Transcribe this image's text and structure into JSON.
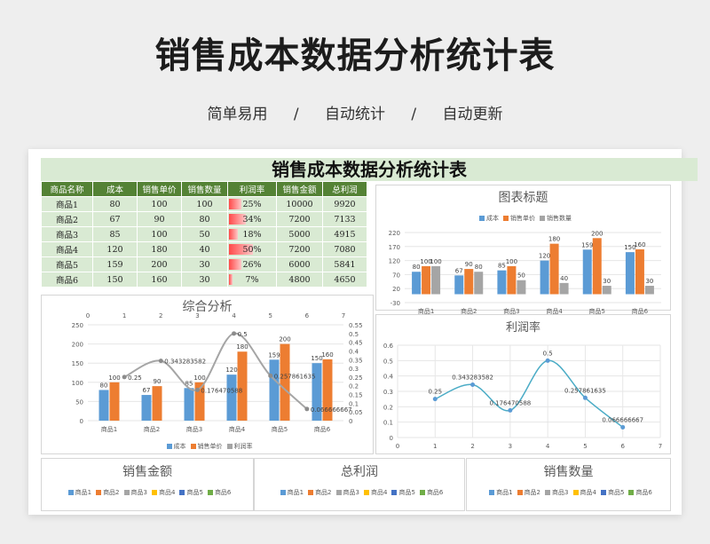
{
  "header": {
    "title": "销售成本数据分析统计表",
    "subtitle": [
      "简单易用",
      "/",
      "自动统计",
      "/",
      "自动更新"
    ]
  },
  "sheet": {
    "title": "销售成本数据分析统计表",
    "columns": [
      "商品名称",
      "成本",
      "销售单价",
      "销售数量",
      "利润率",
      "销售金额",
      "总利润"
    ],
    "rows": [
      {
        "name": "商品1",
        "cost": "80",
        "price": "100",
        "qty": "100",
        "margin": "25%",
        "margin_value": 0.25,
        "sales": "10000",
        "profit": "9920"
      },
      {
        "name": "商品2",
        "cost": "67",
        "price": "90",
        "qty": "80",
        "margin": "34%",
        "margin_value": 0.343283582,
        "sales": "7200",
        "profit": "7133"
      },
      {
        "name": "商品3",
        "cost": "85",
        "price": "100",
        "qty": "50",
        "margin": "18%",
        "margin_value": 0.176470588,
        "sales": "5000",
        "profit": "4915"
      },
      {
        "name": "商品4",
        "cost": "120",
        "price": "180",
        "qty": "40",
        "margin": "50%",
        "margin_value": 0.5,
        "sales": "7200",
        "profit": "7080"
      },
      {
        "name": "商品5",
        "cost": "159",
        "price": "200",
        "qty": "30",
        "margin": "26%",
        "margin_value": 0.257861635,
        "sales": "6000",
        "profit": "5841"
      },
      {
        "name": "商品6",
        "cost": "150",
        "price": "160",
        "qty": "30",
        "margin": "7%",
        "margin_value": 0.066666667,
        "sales": "4800",
        "profit": "4650"
      }
    ]
  },
  "chart_titles": {
    "chart_title": "图表标题",
    "combined": "综合分析",
    "margin": "利润率",
    "sales_amount": "销售金额",
    "total_profit": "总利润",
    "sales_qty": "销售数量"
  },
  "colors": {
    "cost": "#5b9bd5",
    "price": "#ed7d31",
    "qty": "#a5a5a5",
    "p4": "#ffc000",
    "margin_line": "#4bacc6",
    "p6": "#70ad47",
    "header_green": "#548235",
    "light_green": "#d9ead3",
    "margin_bar": "#ff4a4a"
  },
  "chart_data": [
    {
      "type": "bar",
      "title": "图表标题",
      "categories": [
        "商品1",
        "商品2",
        "商品3",
        "商品4",
        "商品5",
        "商品6"
      ],
      "series": [
        {
          "name": "成本",
          "values": [
            80,
            67,
            85,
            120,
            159,
            150
          ]
        },
        {
          "name": "销售单价",
          "values": [
            100,
            90,
            100,
            180,
            200,
            160
          ]
        },
        {
          "name": "销售数量",
          "values": [
            100,
            80,
            50,
            40,
            30,
            30
          ]
        }
      ],
      "yticks": [
        "-30",
        "20",
        "70",
        "120",
        "170",
        "220"
      ],
      "ylim": [
        -30,
        220
      ],
      "legend": "top"
    },
    {
      "type": "bar",
      "title": "综合分析",
      "categories": [
        "商品1",
        "商品2",
        "商品3",
        "商品4",
        "商品5",
        "商品6"
      ],
      "series": [
        {
          "name": "成本",
          "values": [
            80,
            67,
            85,
            120,
            159,
            150
          ]
        },
        {
          "name": "销售单价",
          "values": [
            100,
            90,
            100,
            180,
            200,
            160
          ]
        },
        {
          "name": "利润率",
          "type": "line",
          "axis": "secondary",
          "x": [
            1,
            2,
            3,
            4,
            5,
            6
          ],
          "values": [
            0.25,
            0.343283582,
            0.176470588,
            0.5,
            0.257861635,
            0.066666667
          ],
          "labels": [
            "0.25",
            "0.343283582",
            "0.176470588",
            "0.5",
            "0.257861635",
            "0.066666667"
          ]
        }
      ],
      "yticks": [
        "0",
        "50",
        "100",
        "150",
        "200",
        "250"
      ],
      "ylim": [
        0,
        250
      ],
      "y2ticks": [
        "0",
        "0.05",
        "0.1",
        "0.15",
        "0.2",
        "0.25",
        "0.3",
        "0.35",
        "0.4",
        "0.45",
        "0.5",
        "0.55"
      ],
      "y2lim": [
        0,
        0.55
      ],
      "x2ticks": [
        "0",
        "1",
        "2",
        "3",
        "4",
        "5",
        "6",
        "7"
      ],
      "x2lim": [
        0,
        7
      ],
      "legend": "bottom"
    },
    {
      "type": "scatter",
      "title": "利润率",
      "x": [
        1,
        2,
        3,
        4,
        5,
        6
      ],
      "y": [
        0.25,
        0.343283582,
        0.176470588,
        0.5,
        0.257861635,
        0.066666667
      ],
      "labels": [
        "0.25",
        "0.343283582",
        "0.176470588",
        "0.5",
        "0.257861635",
        "0.066666667"
      ],
      "xticks": [
        "0",
        "1",
        "2",
        "3",
        "4",
        "5",
        "6",
        "7"
      ],
      "xlim": [
        0,
        7
      ],
      "yticks": [
        "0",
        "0.1",
        "0.2",
        "0.3",
        "0.4",
        "0.5",
        "0.6"
      ],
      "ylim": [
        0,
        0.6
      ],
      "smooth": true,
      "grid": true
    }
  ],
  "legends": {
    "top": [
      {
        "name": "成本",
        "color": "#5b9bd5"
      },
      {
        "name": "销售单价",
        "color": "#ed7d31"
      },
      {
        "name": "销售数量",
        "color": "#a5a5a5"
      }
    ],
    "combined": [
      {
        "name": "成本",
        "color": "#5b9bd5"
      },
      {
        "name": "销售单价",
        "color": "#ed7d31"
      },
      {
        "name": "利润率",
        "color": "#a5a5a5"
      }
    ],
    "products": [
      {
        "name": "商品1",
        "color": "#5b9bd5"
      },
      {
        "name": "商品2",
        "color": "#ed7d31"
      },
      {
        "name": "商品3",
        "color": "#a5a5a5"
      },
      {
        "name": "商品4",
        "color": "#ffc000"
      },
      {
        "name": "商品5",
        "color": "#4472c4"
      },
      {
        "name": "商品6",
        "color": "#70ad47"
      }
    ]
  }
}
